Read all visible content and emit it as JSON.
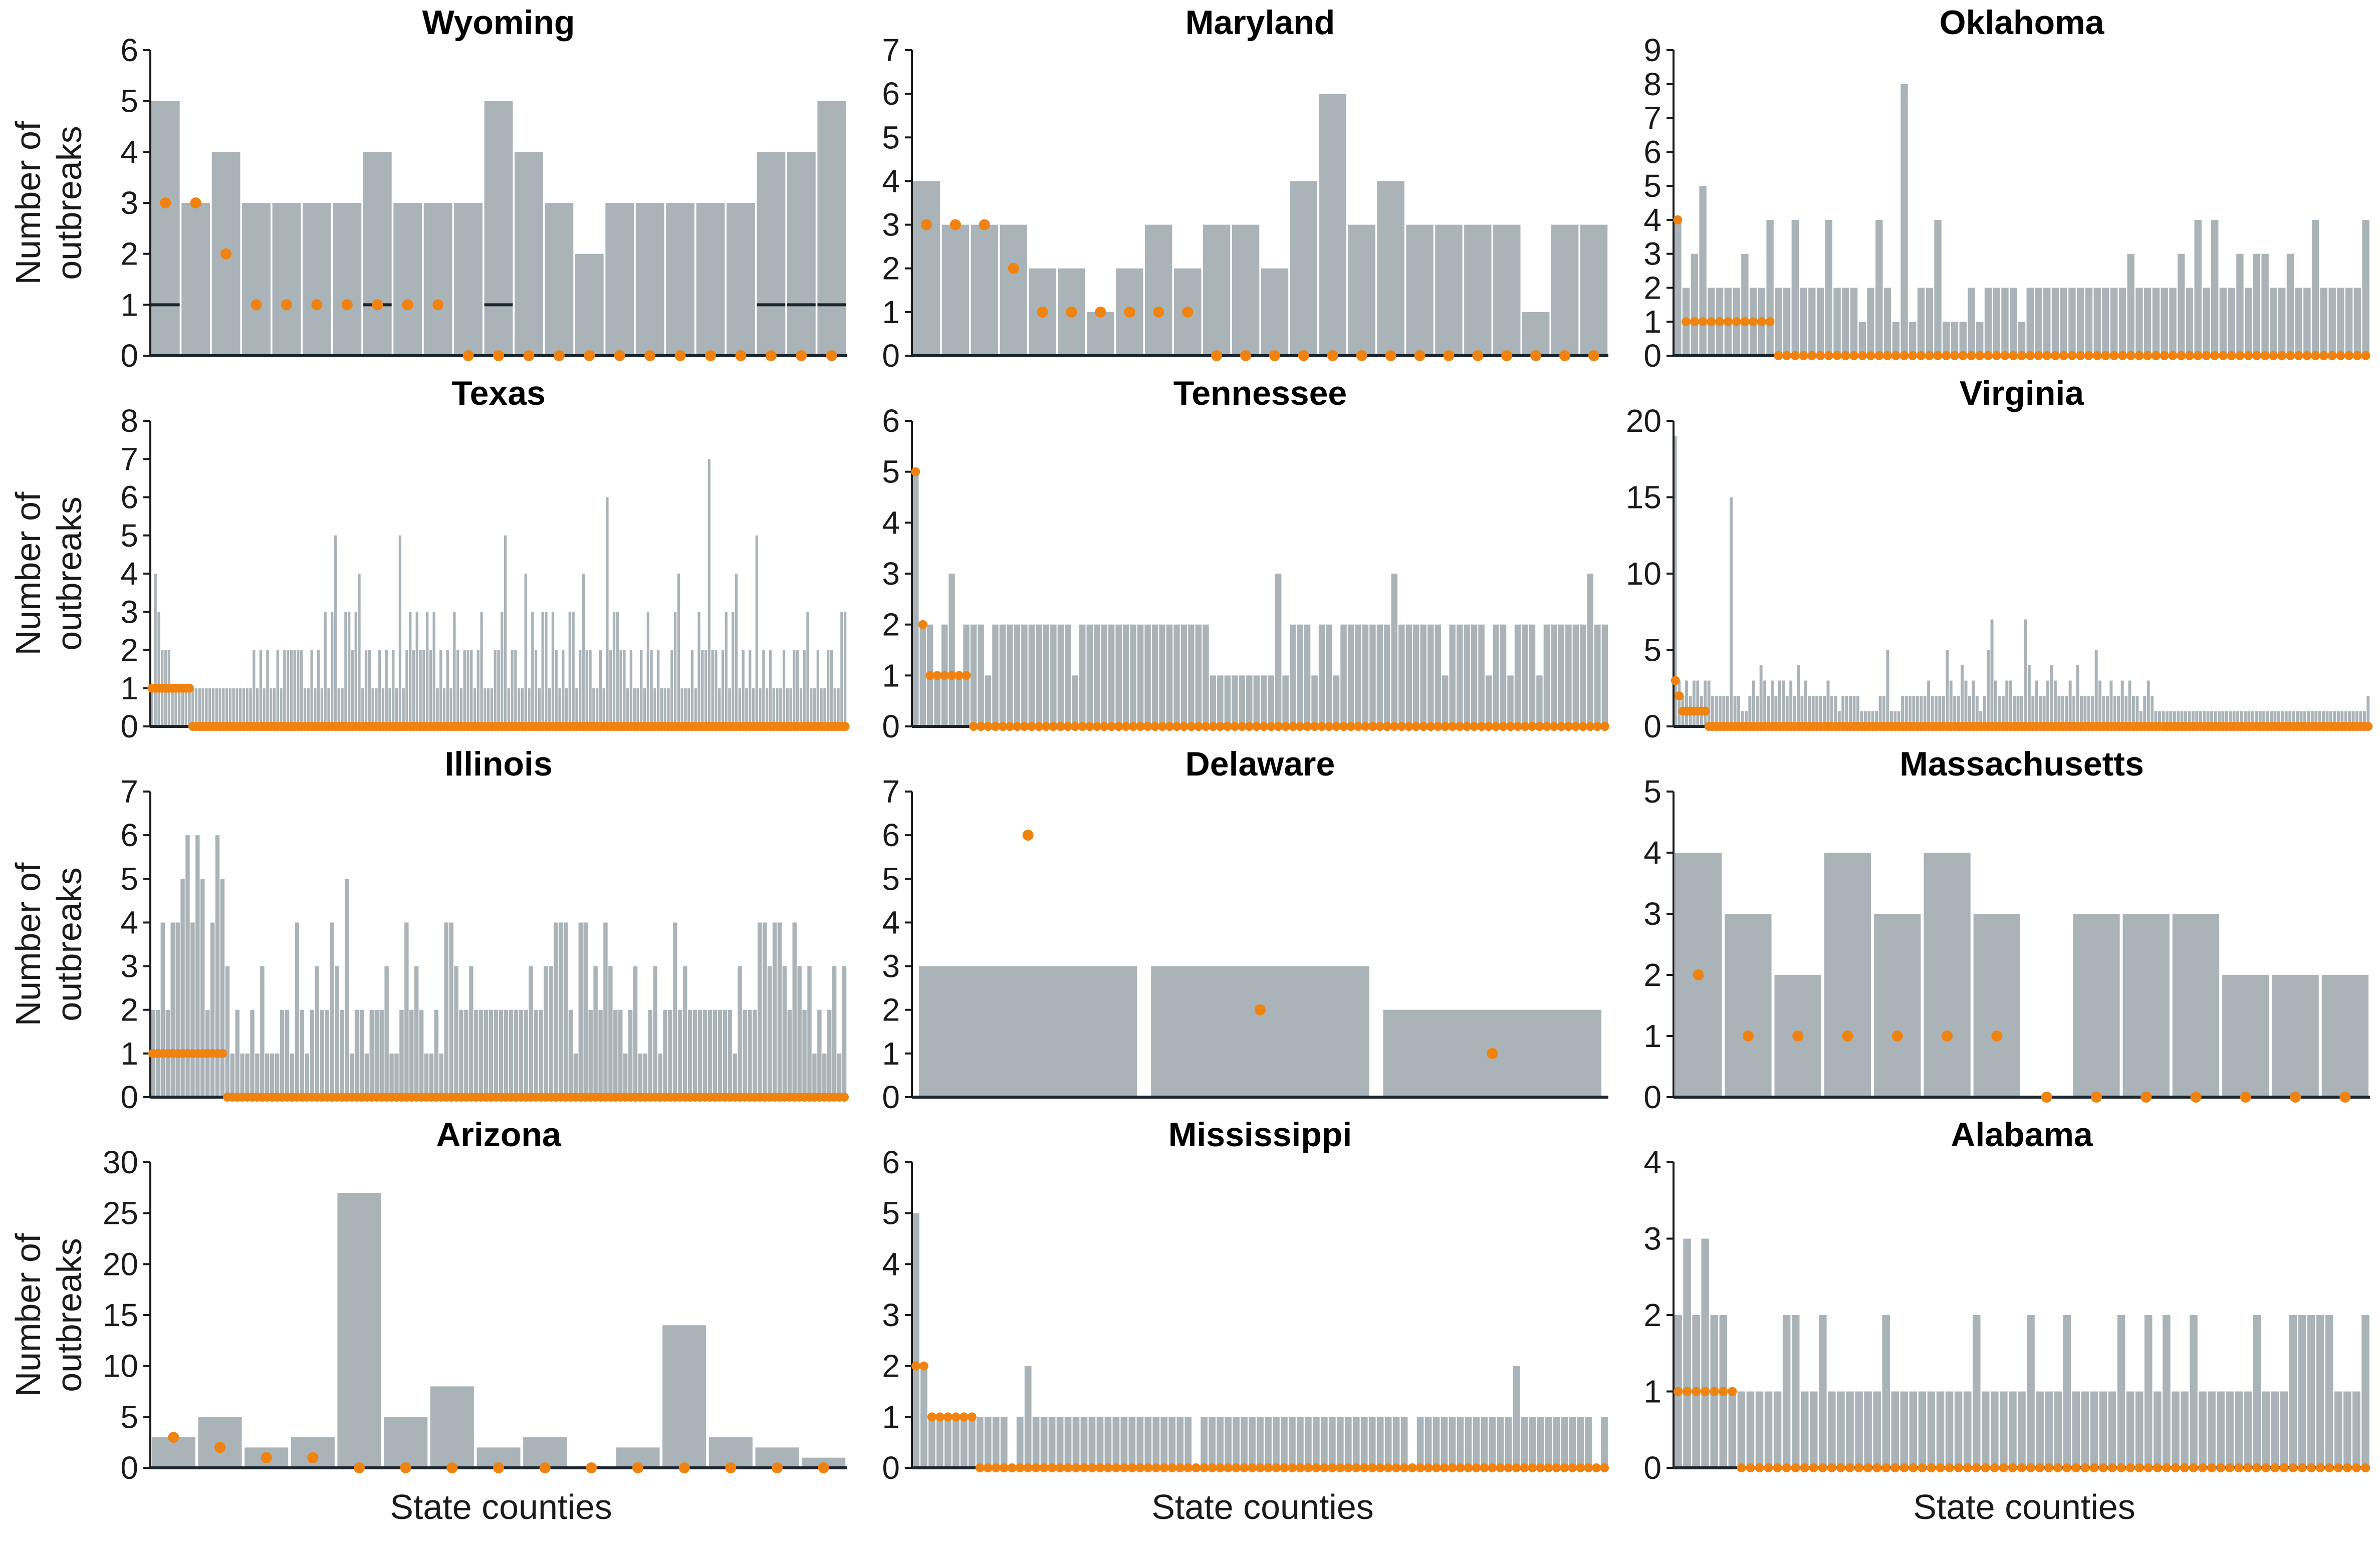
{
  "figure": {
    "x_axis_label": "State counties",
    "y_axis_label_line1": "Number of",
    "y_axis_label_line2": "outbreaks",
    "bar_color": "#aab3b8",
    "dot_color": "#f0820f",
    "line_color": "#1a2530"
  },
  "chart_data": [
    {
      "type": "bar",
      "title": "Wyoming",
      "ylim": [
        0,
        6
      ],
      "yticks": [
        0,
        1,
        2,
        3,
        4,
        5,
        6
      ],
      "values": [
        5,
        3,
        4,
        3,
        3,
        3,
        3,
        4,
        3,
        3,
        3,
        5,
        4,
        3,
        2,
        3,
        3,
        3,
        3,
        3,
        4,
        4,
        5
      ],
      "dots": [
        3,
        3,
        2,
        1,
        1,
        1,
        1,
        1,
        1,
        1,
        0,
        0,
        0,
        0,
        0,
        0,
        0,
        0,
        0,
        0,
        0,
        0,
        0
      ],
      "lines": [
        1,
        0,
        0,
        0,
        0,
        0,
        0,
        1,
        0,
        0,
        0,
        1,
        0,
        0,
        0,
        0,
        0,
        0,
        0,
        0,
        1,
        1,
        1
      ]
    },
    {
      "type": "bar",
      "title": "Maryland",
      "ylim": [
        0,
        7
      ],
      "yticks": [
        0,
        1,
        2,
        3,
        4,
        5,
        6,
        7
      ],
      "values": [
        4,
        3,
        3,
        3,
        2,
        2,
        1,
        2,
        3,
        2,
        3,
        3,
        2,
        4,
        6,
        3,
        4,
        3,
        3,
        3,
        3,
        1,
        3,
        3
      ],
      "dots": [
        3,
        3,
        3,
        2,
        1,
        1,
        1,
        1,
        1,
        1,
        0,
        0,
        0,
        0,
        0,
        0,
        0,
        0,
        0,
        0,
        0,
        0,
        0,
        0
      ],
      "lines": [
        0,
        0,
        0,
        0,
        0,
        0,
        0,
        0,
        0,
        0,
        0,
        0,
        0,
        0,
        0,
        0,
        0,
        0,
        0,
        0,
        0,
        0,
        0,
        0
      ]
    },
    {
      "type": "bar",
      "title": "Oklahoma",
      "ylim": [
        0,
        9
      ],
      "yticks": [
        0,
        1,
        2,
        3,
        4,
        5,
        6,
        7,
        8,
        9
      ],
      "values": [
        4,
        2,
        3,
        5,
        2,
        2,
        2,
        2,
        3,
        2,
        2,
        4,
        2,
        2,
        4,
        2,
        2,
        2,
        4,
        2,
        2,
        2,
        1,
        2,
        4,
        2,
        1,
        8,
        1,
        2,
        2,
        4,
        1,
        1,
        1,
        2,
        1,
        2,
        2,
        2,
        2,
        1,
        2,
        2,
        2,
        2,
        2,
        2,
        2,
        2,
        2,
        2,
        2,
        2,
        3,
        2,
        2,
        2,
        2,
        2,
        3,
        2,
        4,
        2,
        4,
        2,
        2,
        3,
        2,
        3,
        3,
        2,
        2,
        3,
        2,
        2,
        4,
        2,
        2,
        2,
        2,
        2,
        4
      ],
      "dots": [
        4,
        1,
        1,
        1,
        1,
        1,
        1,
        1,
        1,
        1,
        1,
        1
      ],
      "dots_rest": 0,
      "lines": []
    },
    {
      "type": "bar",
      "title": "Texas",
      "ylim": [
        0,
        8
      ],
      "yticks": [
        0,
        1,
        2,
        3,
        4,
        5,
        6,
        7,
        8
      ],
      "values": [
        1,
        4,
        3,
        2,
        2,
        2,
        1,
        1,
        1,
        1,
        1,
        1,
        1,
        1,
        1,
        1,
        1,
        1,
        1,
        1,
        1,
        1,
        1,
        1,
        1,
        1,
        1,
        1,
        1,
        1,
        2,
        1,
        2,
        1,
        2,
        1,
        1,
        2,
        1,
        2,
        2,
        2,
        2,
        2,
        2,
        1,
        1,
        2,
        1,
        2,
        1,
        3,
        1,
        3,
        5,
        1,
        1,
        3,
        3,
        2,
        3,
        4,
        1,
        2,
        2,
        1,
        1,
        2,
        1,
        2,
        1,
        2,
        1,
        5,
        1,
        2,
        3,
        2,
        3,
        2,
        2,
        3,
        2,
        3,
        1,
        2,
        1,
        2,
        1,
        3,
        2,
        1,
        2,
        2,
        2,
        1,
        2,
        3,
        1,
        1,
        1,
        2,
        2,
        3,
        5,
        1,
        2,
        2,
        1,
        1,
        4,
        1,
        3,
        2,
        1,
        3,
        3,
        1,
        3,
        2,
        1,
        2,
        1,
        3,
        3,
        1,
        2,
        4,
        2,
        2,
        1,
        1,
        2,
        1,
        6,
        2,
        3,
        3,
        2,
        2,
        1,
        2,
        1,
        1,
        2,
        1,
        3,
        2,
        1,
        2,
        1,
        1,
        1,
        2,
        3,
        4,
        1,
        1,
        1,
        2,
        1,
        3,
        2,
        2,
        7,
        2,
        2,
        1,
        2,
        3,
        1,
        3,
        4,
        1,
        2,
        1,
        2,
        1,
        5,
        1,
        2,
        1,
        2,
        1,
        1,
        1,
        2,
        1,
        1,
        2,
        2,
        1,
        2,
        3,
        1,
        1,
        2,
        1,
        1,
        2,
        2,
        1,
        1,
        3,
        3
      ],
      "dots": [
        1,
        1,
        1,
        1,
        1,
        1,
        1,
        1,
        1,
        1,
        1,
        1
      ],
      "dots_rest": 0,
      "lines": []
    },
    {
      "type": "bar",
      "title": "Tennessee",
      "ylim": [
        0,
        6
      ],
      "yticks": [
        0,
        1,
        2,
        3,
        4,
        5,
        6
      ],
      "values": [
        5,
        2,
        2,
        1,
        2,
        3,
        1,
        2,
        2,
        2,
        1,
        2,
        2,
        2,
        2,
        2,
        2,
        2,
        2,
        2,
        2,
        2,
        1,
        2,
        2,
        2,
        2,
        2,
        2,
        2,
        2,
        2,
        2,
        2,
        2,
        2,
        2,
        2,
        2,
        2,
        2,
        1,
        1,
        1,
        1,
        1,
        1,
        1,
        1,
        1,
        3,
        1,
        2,
        2,
        2,
        1,
        2,
        2,
        1,
        2,
        2,
        2,
        2,
        2,
        2,
        2,
        3,
        2,
        2,
        2,
        2,
        2,
        2,
        1,
        2,
        2,
        2,
        2,
        2,
        1,
        2,
        2,
        1,
        2,
        2,
        2,
        1,
        2,
        2,
        2,
        2,
        2,
        2,
        3,
        2,
        2
      ],
      "dots": [
        5,
        2,
        1,
        1,
        1,
        1,
        1,
        1
      ],
      "dots_rest": 0,
      "lines": []
    },
    {
      "type": "bar",
      "title": "Virginia",
      "ylim": [
        0,
        20
      ],
      "yticks": [
        0,
        5,
        10,
        15,
        20
      ],
      "values": [
        19,
        3,
        2,
        3,
        2,
        3,
        3,
        2,
        3,
        3,
        2,
        2,
        2,
        2,
        2,
        15,
        2,
        2,
        1,
        1,
        2,
        3,
        2,
        4,
        3,
        2,
        3,
        2,
        3,
        3,
        2,
        3,
        2,
        4,
        2,
        3,
        2,
        2,
        2,
        2,
        2,
        3,
        2,
        2,
        1,
        2,
        2,
        2,
        2,
        2,
        1,
        1,
        1,
        1,
        1,
        2,
        2,
        5,
        1,
        1,
        1,
        2,
        2,
        2,
        2,
        2,
        2,
        2,
        3,
        2,
        2,
        2,
        2,
        5,
        3,
        2,
        2,
        4,
        3,
        2,
        3,
        2,
        1,
        2,
        5,
        7,
        3,
        2,
        2,
        3,
        3,
        2,
        2,
        2,
        7,
        4,
        2,
        3,
        2,
        2,
        3,
        4,
        3,
        2,
        2,
        2,
        3,
        2,
        4,
        2,
        2,
        2,
        2,
        5,
        3,
        2,
        2,
        3,
        2,
        2,
        3,
        2,
        3,
        2,
        2,
        1,
        2,
        3,
        2,
        1,
        1,
        1,
        1,
        1,
        1,
        1,
        1,
        1,
        1,
        1,
        1,
        1,
        1,
        1,
        1,
        1,
        1,
        1,
        1,
        1,
        1,
        1,
        1,
        1,
        1,
        1,
        1,
        1,
        1,
        1,
        1,
        1,
        1,
        1,
        1,
        1,
        1,
        1,
        1,
        1,
        1,
        1,
        1,
        1,
        1,
        1,
        1,
        1,
        1,
        1,
        1,
        1,
        1,
        1,
        1,
        1,
        2
      ],
      "dots": [
        3,
        2,
        1,
        1,
        1,
        1,
        1,
        1,
        1
      ],
      "dots_rest": 0,
      "lines": []
    },
    {
      "type": "bar",
      "title": "Illinois",
      "ylim": [
        0,
        7
      ],
      "yticks": [
        0,
        1,
        2,
        3,
        4,
        5,
        6,
        7
      ],
      "values": [
        2,
        2,
        4,
        2,
        4,
        4,
        5,
        6,
        4,
        6,
        5,
        2,
        4,
        6,
        5,
        3,
        1,
        2,
        1,
        1,
        2,
        1,
        3,
        1,
        1,
        1,
        2,
        2,
        1,
        4,
        2,
        1,
        2,
        3,
        2,
        2,
        4,
        3,
        2,
        5,
        1,
        2,
        2,
        1,
        2,
        2,
        2,
        3,
        1,
        1,
        2,
        4,
        2,
        3,
        2,
        1,
        1,
        2,
        1,
        4,
        4,
        3,
        2,
        2,
        3,
        2,
        2,
        2,
        2,
        2,
        2,
        2,
        2,
        2,
        2,
        2,
        3,
        2,
        2,
        3,
        3,
        4,
        4,
        4,
        2,
        1,
        4,
        4,
        2,
        3,
        2,
        4,
        3,
        2,
        2,
        1,
        2,
        3,
        1,
        1,
        2,
        3,
        1,
        2,
        2,
        4,
        2,
        3,
        2,
        2,
        2,
        2,
        2,
        2,
        2,
        2,
        2,
        1,
        3,
        2,
        2,
        2,
        4,
        4,
        3,
        4,
        4,
        3,
        2,
        4,
        3,
        2,
        3,
        1,
        2,
        1,
        2,
        3,
        1,
        3
      ],
      "dots": [
        1,
        1,
        1,
        1,
        1,
        1,
        1,
        1,
        1,
        1,
        1,
        1,
        1,
        1,
        1
      ],
      "dots_rest": 0,
      "lines": []
    },
    {
      "type": "bar",
      "title": "Delaware",
      "ylim": [
        0,
        7
      ],
      "yticks": [
        0,
        1,
        2,
        3,
        4,
        5,
        6,
        7
      ],
      "values": [
        3,
        3,
        2
      ],
      "dots": [
        6,
        2,
        1
      ],
      "lines": [
        0,
        0,
        0
      ]
    },
    {
      "type": "bar",
      "title": "Massachusetts",
      "ylim": [
        0,
        5
      ],
      "yticks": [
        0,
        1,
        2,
        3,
        4,
        5
      ],
      "values": [
        4,
        3,
        2,
        4,
        3,
        4,
        3,
        0,
        3,
        3,
        3,
        2,
        2,
        2
      ],
      "dots": [
        2,
        1,
        1,
        1,
        1,
        1,
        1,
        0,
        0,
        0,
        0,
        0,
        0,
        0
      ],
      "lines": [
        0,
        0,
        0,
        0,
        0,
        0,
        0,
        0,
        0,
        0,
        0,
        0,
        0,
        0
      ]
    },
    {
      "type": "bar",
      "title": "Arizona",
      "ylim": [
        0,
        30
      ],
      "yticks": [
        0,
        5,
        10,
        15,
        20,
        25,
        30
      ],
      "values": [
        3,
        5,
        2,
        3,
        27,
        5,
        8,
        2,
        3,
        0,
        2,
        14,
        3,
        2,
        1
      ],
      "dots": [
        3,
        2,
        1,
        1,
        0,
        0,
        0,
        0,
        0,
        0,
        0,
        0,
        0,
        0,
        0
      ],
      "lines": [
        0,
        0,
        0,
        0,
        0,
        0,
        0,
        0,
        0,
        0,
        0,
        0,
        0,
        0,
        0
      ]
    },
    {
      "type": "bar",
      "title": "Mississippi",
      "ylim": [
        0,
        6
      ],
      "yticks": [
        0,
        1,
        2,
        3,
        4,
        5,
        6
      ],
      "values": [
        5,
        2,
        1,
        1,
        1,
        1,
        1,
        1,
        1,
        1,
        1,
        1,
        0,
        1,
        2,
        1,
        1,
        1,
        1,
        1,
        1,
        1,
        1,
        1,
        1,
        1,
        1,
        1,
        1,
        1,
        1,
        1,
        1,
        1,
        1,
        0,
        1,
        1,
        1,
        1,
        1,
        1,
        1,
        1,
        1,
        1,
        1,
        1,
        1,
        1,
        1,
        1,
        1,
        1,
        1,
        1,
        1,
        1,
        1,
        1,
        1,
        1,
        0,
        1,
        1,
        1,
        1,
        1,
        1,
        1,
        1,
        1,
        1,
        1,
        1,
        2,
        1,
        1,
        1,
        1,
        1,
        1,
        1,
        1,
        1,
        0,
        1
      ],
      "dots": [
        2,
        2,
        1,
        1,
        1,
        1,
        1,
        1
      ],
      "dots_rest": 0,
      "lines": []
    },
    {
      "type": "bar",
      "title": "Alabama",
      "ylim": [
        0,
        4
      ],
      "yticks": [
        0,
        1,
        2,
        3,
        4
      ],
      "values": [
        2,
        3,
        2,
        3,
        2,
        2,
        1,
        1,
        1,
        1,
        1,
        1,
        2,
        2,
        1,
        1,
        2,
        1,
        1,
        1,
        1,
        1,
        1,
        2,
        1,
        1,
        1,
        1,
        1,
        1,
        1,
        1,
        1,
        2,
        1,
        1,
        1,
        1,
        1,
        2,
        1,
        1,
        1,
        2,
        1,
        1,
        1,
        1,
        1,
        2,
        1,
        1,
        2,
        1,
        2,
        1,
        1,
        2,
        1,
        1,
        1,
        1,
        1,
        1,
        2,
        1,
        1,
        1,
        2,
        2,
        2,
        2,
        2,
        1,
        1,
        1,
        2
      ],
      "dots": [
        1,
        1,
        1,
        1,
        1,
        1,
        1
      ],
      "dots_rest": 0,
      "lines": []
    }
  ]
}
